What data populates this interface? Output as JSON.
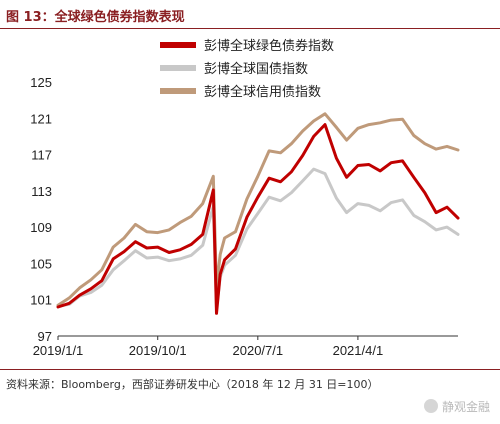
{
  "figure": {
    "title": "图 13：全球绿色债券指数表现",
    "source": "资料来源：Bloomberg，西部证券研发中心（2018 年 12 月 31 日=100）",
    "watermark": "静观金融"
  },
  "chart_data": {
    "type": "line",
    "title": "",
    "xlabel": "",
    "ylabel": "",
    "ylim": [
      97,
      125
    ],
    "yticks": [
      97,
      101,
      105,
      109,
      113,
      117,
      121,
      125
    ],
    "xlim": [
      "2019-01-01",
      "2021-12-31"
    ],
    "xticks": [
      {
        "date": "2019-01-01",
        "label": "2019/1/1"
      },
      {
        "date": "2019-10-01",
        "label": "2019/10/1"
      },
      {
        "date": "2020-07-01",
        "label": "2020/7/1"
      },
      {
        "date": "2021-04-01",
        "label": "2021/4/1"
      }
    ],
    "grid": false,
    "legend_position": "top-center",
    "series": [
      {
        "name": "彭博全球绿色债券指数",
        "color": "#c00000",
        "width": 3,
        "x": [
          "2019-01-01",
          "2019-02-01",
          "2019-03-01",
          "2019-04-01",
          "2019-05-01",
          "2019-06-01",
          "2019-07-01",
          "2019-08-01",
          "2019-09-01",
          "2019-10-01",
          "2019-11-01",
          "2019-12-01",
          "2020-01-01",
          "2020-02-01",
          "2020-03-01",
          "2020-03-10",
          "2020-03-20",
          "2020-04-01",
          "2020-05-01",
          "2020-06-01",
          "2020-07-01",
          "2020-08-01",
          "2020-09-01",
          "2020-10-01",
          "2020-11-01",
          "2020-12-01",
          "2021-01-01",
          "2021-02-01",
          "2021-03-01",
          "2021-04-01",
          "2021-05-01",
          "2021-06-01",
          "2021-07-01",
          "2021-08-01",
          "2021-09-01",
          "2021-10-01",
          "2021-11-01",
          "2021-12-01",
          "2021-12-31"
        ],
        "values": [
          100.2,
          100.6,
          101.5,
          102.2,
          103.1,
          105.5,
          106.3,
          107.4,
          106.7,
          106.8,
          106.2,
          106.5,
          107.1,
          108.2,
          113.1,
          99.5,
          103.8,
          105.4,
          106.6,
          110.1,
          112.3,
          114.4,
          114.0,
          115.1,
          116.9,
          119.0,
          120.3,
          116.6,
          114.5,
          115.8,
          115.9,
          115.2,
          116.1,
          116.3,
          114.5,
          112.8,
          110.6,
          111.2,
          110.0
        ]
      },
      {
        "name": "彭博全球国债指数",
        "color": "#c8c8c8",
        "width": 3,
        "x": [
          "2019-01-01",
          "2019-02-01",
          "2019-03-01",
          "2019-04-01",
          "2019-05-01",
          "2019-06-01",
          "2019-07-01",
          "2019-08-01",
          "2019-09-01",
          "2019-10-01",
          "2019-11-01",
          "2019-12-01",
          "2020-01-01",
          "2020-02-01",
          "2020-03-01",
          "2020-03-10",
          "2020-03-20",
          "2020-04-01",
          "2020-05-01",
          "2020-06-01",
          "2020-07-01",
          "2020-08-01",
          "2020-09-01",
          "2020-10-01",
          "2020-11-01",
          "2020-12-01",
          "2021-01-01",
          "2021-02-01",
          "2021-03-01",
          "2021-04-01",
          "2021-05-01",
          "2021-06-01",
          "2021-07-01",
          "2021-08-01",
          "2021-09-01",
          "2021-10-01",
          "2021-11-01",
          "2021-12-01",
          "2021-12-31"
        ],
        "values": [
          100.3,
          100.5,
          101.4,
          101.8,
          102.6,
          104.3,
          105.3,
          106.4,
          105.6,
          105.7,
          105.3,
          105.5,
          105.9,
          107.0,
          111.3,
          100.0,
          103.5,
          104.8,
          105.9,
          108.8,
          110.5,
          112.3,
          111.9,
          112.8,
          114.1,
          115.4,
          114.9,
          112.2,
          110.6,
          111.6,
          111.4,
          110.8,
          111.7,
          112.0,
          110.3,
          109.6,
          108.7,
          109.0,
          108.2
        ]
      },
      {
        "name": "彭博全球信用债指数",
        "color": "#bf9a7a",
        "width": 3,
        "x": [
          "2019-01-01",
          "2019-02-01",
          "2019-03-01",
          "2019-04-01",
          "2019-05-01",
          "2019-06-01",
          "2019-07-01",
          "2019-08-01",
          "2019-09-01",
          "2019-10-01",
          "2019-11-01",
          "2019-12-01",
          "2020-01-01",
          "2020-02-01",
          "2020-03-01",
          "2020-03-10",
          "2020-03-20",
          "2020-04-01",
          "2020-05-01",
          "2020-06-01",
          "2020-07-01",
          "2020-08-01",
          "2020-09-01",
          "2020-10-01",
          "2020-11-01",
          "2020-12-01",
          "2021-01-01",
          "2021-02-01",
          "2021-03-01",
          "2021-04-01",
          "2021-05-01",
          "2021-06-01",
          "2021-07-01",
          "2021-08-01",
          "2021-09-01",
          "2021-10-01",
          "2021-11-01",
          "2021-12-01",
          "2021-12-31"
        ],
        "values": [
          100.4,
          101.2,
          102.3,
          103.2,
          104.3,
          106.8,
          107.8,
          109.3,
          108.5,
          108.4,
          108.7,
          109.5,
          110.2,
          111.6,
          114.6,
          102.3,
          106.0,
          107.8,
          108.5,
          112.1,
          114.6,
          117.4,
          117.2,
          118.2,
          119.6,
          120.7,
          121.5,
          120.0,
          118.6,
          119.9,
          120.3,
          120.5,
          120.8,
          120.9,
          119.1,
          118.2,
          117.6,
          117.9,
          117.5
        ]
      }
    ]
  }
}
